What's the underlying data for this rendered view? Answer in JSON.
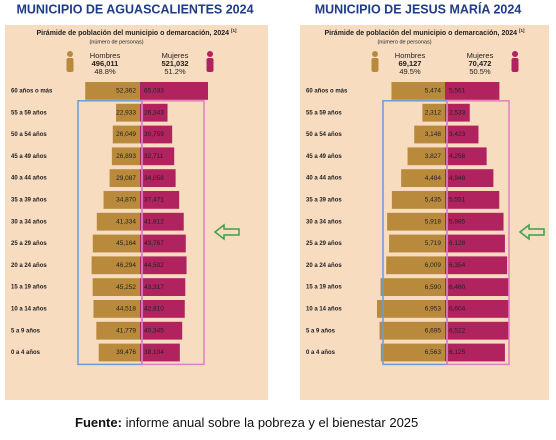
{
  "chart_data": [
    {
      "type": "pyramid",
      "title": "MUNICIPIO DE AGUASCALIENTES 2024",
      "subtitle": "Pirámide de población del municipio o demarcación, 2024",
      "subtitle_ref": "[1]",
      "note": "(número de personas)",
      "categories": [
        "60 años o más",
        "55 a 59 años",
        "50 a 54 años",
        "45 a 49 años",
        "40 a 44 años",
        "35 a 39 años",
        "30 a 34 años",
        "25 a 29 años",
        "20 a 24 años",
        "15 a 19 años",
        "10 a 14 años",
        "5 a 9 años",
        "0 a 4 años"
      ],
      "series": [
        {
          "name": "Hombres",
          "total": "496,011",
          "share": "48.8%",
          "color": "#b98a3c",
          "values": [
            52362,
            22933,
            26049,
            26893,
            29087,
            34870,
            41334,
            45164,
            46294,
            45252,
            44518,
            41779,
            39476
          ],
          "value_labels": [
            "52,362",
            "22,933",
            "26,049",
            "26,893",
            "29,087",
            "34,870",
            "41,334",
            "45,164",
            "46,294",
            "45,252",
            "44,518",
            "41,779",
            "39,476"
          ]
        },
        {
          "name": "Mujeres",
          "total": "521,032",
          "share": "51.2%",
          "color": "#b0235f",
          "values": [
            65033,
            26343,
            30759,
            32711,
            34058,
            37471,
            41812,
            43767,
            44502,
            43317,
            42810,
            40345,
            38104
          ],
          "value_labels": [
            "65,033",
            "26,343",
            "30,759",
            "32,711",
            "34,058",
            "37,471",
            "41,812",
            "43,767",
            "44,502",
            "43,317",
            "42,810",
            "40,345",
            "38,104"
          ]
        }
      ]
    },
    {
      "type": "pyramid",
      "title": "MUNICIPIO DE JESUS MARÍA 2024",
      "subtitle": "Pirámide de población del municipio o demarcación, 2024",
      "subtitle_ref": "[1]",
      "note": "(número de personas)",
      "categories": [
        "60 años o más",
        "55 a 59 años",
        "50 a 54 años",
        "45 a 49 años",
        "40 a 44 años",
        "35 a 39 años",
        "30 a 34 años",
        "25 a 29 años",
        "20 a 24 años",
        "15 a 19 años",
        "10 a 14 años",
        "5 a 9 años",
        "0 a 4 años"
      ],
      "series": [
        {
          "name": "Hombres",
          "total": "69,127",
          "share": "49.5%",
          "color": "#b98a3c",
          "values": [
            5474,
            2312,
            3148,
            3827,
            4484,
            5435,
            5918,
            5719,
            6009,
            6590,
            6953,
            6695,
            6563
          ],
          "value_labels": [
            "5,474",
            "2,312",
            "3,148",
            "3,827",
            "4,484",
            "5,435",
            "5,918",
            "5,719",
            "6,009",
            "6,590",
            "6,953",
            "6,695",
            "6,563"
          ]
        },
        {
          "name": "Mujeres",
          "total": "70,472",
          "share": "50.5%",
          "color": "#b0235f",
          "values": [
            5561,
            2533,
            3423,
            4258,
            4948,
            5551,
            5985,
            6128,
            6354,
            6480,
            6604,
            6522,
            6125
          ],
          "value_labels": [
            "5,561",
            "2,533",
            "3,423",
            "4,258",
            "4,948",
            "5,551",
            "5,985",
            "6,128",
            "6,354",
            "6,480",
            "6,604",
            "6,522",
            "6,125"
          ]
        }
      ]
    }
  ],
  "footer": {
    "label": "Fuente:",
    "text": "informe anual sobre la pobreza y el bienestar 2025"
  }
}
